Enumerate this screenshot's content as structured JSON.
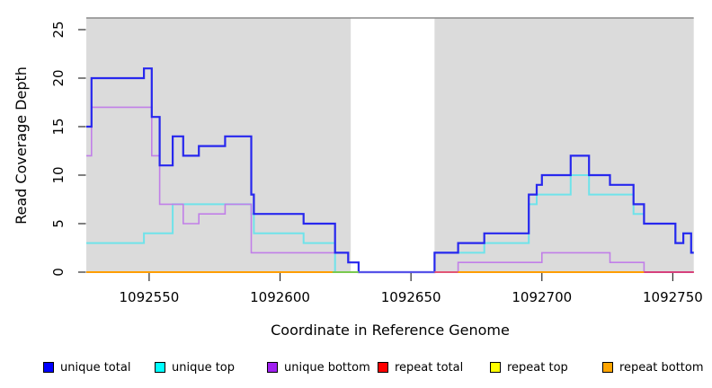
{
  "chart_data": {
    "type": "line",
    "step": true,
    "title": "",
    "xlabel": "Coordinate in Reference Genome",
    "ylabel": "Read Coverage Depth",
    "xlim": [
      1092526,
      1092758
    ],
    "ylim": [
      0,
      26.2
    ],
    "xticks": [
      1092550,
      1092600,
      1092650,
      1092700,
      1092750
    ],
    "yticks": [
      0,
      5,
      10,
      15,
      20,
      25
    ],
    "grid": false,
    "legend_position": "bottom",
    "plot_background_color": "#dbdbdb",
    "shaded_regions": [
      [
        1092526,
        1092627
      ],
      [
        1092659,
        1092758
      ]
    ],
    "unshaded_gap": [
      1092627,
      1092659
    ],
    "series": [
      {
        "name": "unique total",
        "legend_color": "#0000ff",
        "line_color": "#2727ee",
        "line_width": 2.2,
        "steps": [
          [
            1092526,
            15
          ],
          [
            1092528,
            20
          ],
          [
            1092548,
            21
          ],
          [
            1092551,
            16
          ],
          [
            1092554,
            11
          ],
          [
            1092559,
            14
          ],
          [
            1092563,
            12
          ],
          [
            1092569,
            13
          ],
          [
            1092579,
            14
          ],
          [
            1092589,
            8
          ],
          [
            1092590,
            6
          ],
          [
            1092609,
            5
          ],
          [
            1092621,
            2
          ],
          [
            1092626,
            1
          ],
          [
            1092630,
            0
          ],
          [
            1092659,
            2
          ],
          [
            1092668,
            3
          ],
          [
            1092678,
            4
          ],
          [
            1092695,
            8
          ],
          [
            1092698,
            9
          ],
          [
            1092700,
            10
          ],
          [
            1092711,
            12
          ],
          [
            1092718,
            10
          ],
          [
            1092726,
            9
          ],
          [
            1092735,
            7
          ],
          [
            1092739,
            5
          ],
          [
            1092751,
            3
          ],
          [
            1092754,
            4
          ],
          [
            1092757,
            2
          ]
        ]
      },
      {
        "name": "unique top",
        "legend_color": "#00ffff",
        "line_color": "#6fe3ea",
        "line_width": 2.0,
        "steps": [
          [
            1092526,
            3
          ],
          [
            1092548,
            4
          ],
          [
            1092559,
            7
          ],
          [
            1092589,
            6
          ],
          [
            1092590,
            4
          ],
          [
            1092609,
            3
          ],
          [
            1092621,
            0
          ],
          [
            1092659,
            2
          ],
          [
            1092678,
            3
          ],
          [
            1092695,
            7
          ],
          [
            1092698,
            8
          ],
          [
            1092711,
            10
          ],
          [
            1092718,
            8
          ],
          [
            1092735,
            6
          ],
          [
            1092739,
            5
          ],
          [
            1092751,
            3
          ],
          [
            1092754,
            4
          ],
          [
            1092757,
            2
          ]
        ]
      },
      {
        "name": "unique bottom",
        "legend_color": "#a020f0",
        "line_color": "#c17fe8",
        "line_width": 1.6,
        "steps": [
          [
            1092526,
            12
          ],
          [
            1092528,
            17
          ],
          [
            1092551,
            12
          ],
          [
            1092554,
            7
          ],
          [
            1092563,
            5
          ],
          [
            1092569,
            6
          ],
          [
            1092579,
            7
          ],
          [
            1092589,
            2
          ],
          [
            1092626,
            1
          ],
          [
            1092630,
            0
          ],
          [
            1092668,
            1
          ],
          [
            1092700,
            2
          ],
          [
            1092726,
            1
          ],
          [
            1092739,
            0
          ]
        ]
      },
      {
        "name": "repeat total",
        "legend_color": "#ff0000",
        "line_color": "#ff0000",
        "line_width": 1.5,
        "steps": [
          [
            1092526,
            0
          ]
        ]
      },
      {
        "name": "repeat top",
        "legend_color": "#ffff00",
        "line_color": "#ffff00",
        "line_width": 1.5,
        "steps": [
          [
            1092526,
            0
          ]
        ]
      },
      {
        "name": "repeat bottom",
        "legend_color": "#ffa500",
        "line_color": "#ff9e00",
        "line_width": 2.0,
        "steps": [
          [
            1092526,
            0
          ]
        ]
      }
    ],
    "zero_line_segments": [
      {
        "from": 1092526,
        "to": 1092620,
        "color": "#ff9e00"
      },
      {
        "from": 1092620,
        "to": 1092630,
        "color": "#79c94f"
      },
      {
        "from": 1092630,
        "to": 1092659,
        "color": "#5753e8"
      },
      {
        "from": 1092659,
        "to": 1092668,
        "color": "#e25576"
      },
      {
        "from": 1092668,
        "to": 1092739,
        "color": "#ff9e00"
      },
      {
        "from": 1092739,
        "to": 1092758,
        "color": "#d6407c"
      }
    ]
  },
  "legend": {
    "items": [
      {
        "label": "unique total",
        "color": "#0000ff"
      },
      {
        "label": "unique top",
        "color": "#00ffff"
      },
      {
        "label": "unique bottom",
        "color": "#a020f0"
      },
      {
        "label": "repeat total",
        "color": "#ff0000"
      },
      {
        "label": "repeat top",
        "color": "#ffff00"
      },
      {
        "label": "repeat bottom",
        "color": "#ffa500"
      }
    ]
  }
}
